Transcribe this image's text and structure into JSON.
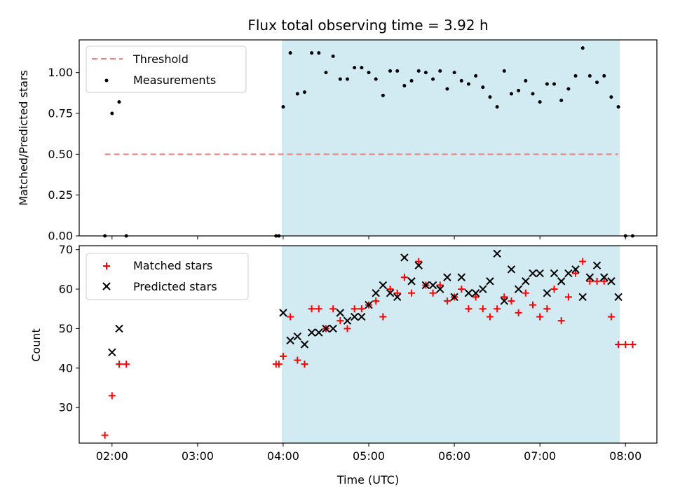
{
  "title": "Flux total observing time = 3.92 h",
  "colors": {
    "span": "#add8e6",
    "threshold": "#f08080",
    "measurement": "#000000",
    "matched": "#ff0000",
    "predicted": "#000000"
  },
  "chart_data": [
    {
      "type": "scatter",
      "ylabel": "Matched/Predicted stars",
      "ylim": [
        0,
        1.2
      ],
      "yticks": [
        "0.00",
        "0.25",
        "0.50",
        "0.75",
        "1.00"
      ],
      "ytick_values": [
        0,
        0.25,
        0.5,
        0.75,
        1.0
      ],
      "legend": {
        "placement": "top-left",
        "entries": [
          "Threshold",
          "Measurements"
        ]
      },
      "shaded_span": [
        "03:59",
        "07:56"
      ],
      "threshold": {
        "name": "Threshold",
        "y": 0.5,
        "x": [
          "01:55",
          "07:55"
        ]
      },
      "series": [
        {
          "name": "Measurements",
          "points": [
            [
              "01:55",
              0.0
            ],
            [
              "02:00",
              0.75
            ],
            [
              "02:05",
              0.82
            ],
            [
              "02:10",
              0.0
            ],
            [
              "03:55",
              0.0
            ],
            [
              "03:57",
              0.0
            ],
            [
              "04:00",
              0.79
            ],
            [
              "04:05",
              1.12
            ],
            [
              "04:10",
              0.87
            ],
            [
              "04:15",
              0.88
            ],
            [
              "04:20",
              1.12
            ],
            [
              "04:25",
              1.12
            ],
            [
              "04:30",
              1.0
            ],
            [
              "04:35",
              1.1
            ],
            [
              "04:40",
              0.96
            ],
            [
              "04:45",
              0.96
            ],
            [
              "04:50",
              1.03
            ],
            [
              "04:55",
              1.03
            ],
            [
              "05:00",
              1.0
            ],
            [
              "05:05",
              0.96
            ],
            [
              "05:10",
              0.86
            ],
            [
              "05:15",
              1.01
            ],
            [
              "05:20",
              1.01
            ],
            [
              "05:25",
              0.92
            ],
            [
              "05:30",
              0.95
            ],
            [
              "05:35",
              1.01
            ],
            [
              "05:40",
              1.0
            ],
            [
              "05:45",
              0.96
            ],
            [
              "05:50",
              1.01
            ],
            [
              "05:55",
              0.9
            ],
            [
              "06:00",
              1.0
            ],
            [
              "06:05",
              0.95
            ],
            [
              "06:10",
              0.93
            ],
            [
              "06:15",
              0.98
            ],
            [
              "06:20",
              0.91
            ],
            [
              "06:25",
              0.85
            ],
            [
              "06:30",
              0.79
            ],
            [
              "06:35",
              1.01
            ],
            [
              "06:40",
              0.87
            ],
            [
              "06:45",
              0.89
            ],
            [
              "06:50",
              0.95
            ],
            [
              "06:55",
              0.87
            ],
            [
              "07:00",
              0.82
            ],
            [
              "07:05",
              0.93
            ],
            [
              "07:10",
              0.93
            ],
            [
              "07:15",
              0.83
            ],
            [
              "07:20",
              0.9
            ],
            [
              "07:25",
              0.98
            ],
            [
              "07:30",
              1.15
            ],
            [
              "07:35",
              0.98
            ],
            [
              "07:40",
              0.94
            ],
            [
              "07:45",
              0.98
            ],
            [
              "07:50",
              0.85
            ],
            [
              "07:55",
              0.79
            ],
            [
              "08:00",
              0.0
            ],
            [
              "08:05",
              0.0
            ]
          ]
        }
      ]
    },
    {
      "type": "scatter",
      "xlabel": "Time (UTC)",
      "ylabel": "Count",
      "xlim": [
        "01:37",
        "08:22"
      ],
      "xticks": [
        "02:00",
        "03:00",
        "04:00",
        "05:00",
        "06:00",
        "07:00",
        "08:00"
      ],
      "ylim": [
        21,
        71
      ],
      "yticks": [
        "30",
        "40",
        "50",
        "60",
        "70"
      ],
      "ytick_values": [
        30,
        40,
        50,
        60,
        70
      ],
      "legend": {
        "placement": "top-left",
        "entries": [
          "Matched stars",
          "Predicted stars"
        ]
      },
      "shaded_span": [
        "03:59",
        "07:56"
      ],
      "series": [
        {
          "name": "Matched stars",
          "marker": "plus",
          "points": [
            [
              "01:55",
              23
            ],
            [
              "02:00",
              33
            ],
            [
              "02:05",
              41
            ],
            [
              "02:10",
              41
            ],
            [
              "03:55",
              41
            ],
            [
              "03:57",
              41
            ],
            [
              "04:00",
              43
            ],
            [
              "04:05",
              53
            ],
            [
              "04:10",
              42
            ],
            [
              "04:15",
              41
            ],
            [
              "04:20",
              55
            ],
            [
              "04:25",
              55
            ],
            [
              "04:30",
              50
            ],
            [
              "04:35",
              55
            ],
            [
              "04:40",
              52
            ],
            [
              "04:45",
              50
            ],
            [
              "04:50",
              55
            ],
            [
              "04:55",
              55
            ],
            [
              "05:00",
              56
            ],
            [
              "05:05",
              57
            ],
            [
              "05:10",
              53
            ],
            [
              "05:15",
              60
            ],
            [
              "05:20",
              59
            ],
            [
              "05:25",
              63
            ],
            [
              "05:30",
              59
            ],
            [
              "05:35",
              67
            ],
            [
              "05:40",
              61
            ],
            [
              "05:45",
              59
            ],
            [
              "05:50",
              61
            ],
            [
              "05:55",
              57
            ],
            [
              "06:00",
              58
            ],
            [
              "06:05",
              60
            ],
            [
              "06:10",
              55
            ],
            [
              "06:15",
              58
            ],
            [
              "06:20",
              55
            ],
            [
              "06:25",
              53
            ],
            [
              "06:30",
              55
            ],
            [
              "06:35",
              58
            ],
            [
              "06:40",
              57
            ],
            [
              "06:45",
              54
            ],
            [
              "06:50",
              59
            ],
            [
              "06:55",
              56
            ],
            [
              "07:00",
              53
            ],
            [
              "07:05",
              55
            ],
            [
              "07:10",
              60
            ],
            [
              "07:15",
              52
            ],
            [
              "07:20",
              58
            ],
            [
              "07:25",
              64
            ],
            [
              "07:30",
              67
            ],
            [
              "07:35",
              62
            ],
            [
              "07:40",
              62
            ],
            [
              "07:45",
              62
            ],
            [
              "07:50",
              53
            ],
            [
              "07:55",
              46
            ],
            [
              "08:00",
              46
            ],
            [
              "08:05",
              46
            ]
          ]
        },
        {
          "name": "Predicted stars",
          "marker": "cross",
          "points": [
            [
              "02:00",
              44
            ],
            [
              "02:05",
              50
            ],
            [
              "04:00",
              54
            ],
            [
              "04:05",
              47
            ],
            [
              "04:10",
              48
            ],
            [
              "04:15",
              46
            ],
            [
              "04:20",
              49
            ],
            [
              "04:25",
              49
            ],
            [
              "04:30",
              50
            ],
            [
              "04:35",
              50
            ],
            [
              "04:40",
              54
            ],
            [
              "04:45",
              52
            ],
            [
              "04:50",
              53
            ],
            [
              "04:55",
              53
            ],
            [
              "05:00",
              56
            ],
            [
              "05:05",
              59
            ],
            [
              "05:10",
              61
            ],
            [
              "05:15",
              59
            ],
            [
              "05:20",
              58
            ],
            [
              "05:25",
              68
            ],
            [
              "05:30",
              62
            ],
            [
              "05:35",
              66
            ],
            [
              "05:40",
              61
            ],
            [
              "05:45",
              61
            ],
            [
              "05:50",
              60
            ],
            [
              "05:55",
              63
            ],
            [
              "06:00",
              58
            ],
            [
              "06:05",
              63
            ],
            [
              "06:10",
              59
            ],
            [
              "06:15",
              59
            ],
            [
              "06:20",
              60
            ],
            [
              "06:25",
              62
            ],
            [
              "06:30",
              69
            ],
            [
              "06:35",
              57
            ],
            [
              "06:40",
              65
            ],
            [
              "06:45",
              60
            ],
            [
              "06:50",
              62
            ],
            [
              "06:55",
              64
            ],
            [
              "07:00",
              64
            ],
            [
              "07:05",
              59
            ],
            [
              "07:10",
              64
            ],
            [
              "07:15",
              62
            ],
            [
              "07:20",
              64
            ],
            [
              "07:25",
              65
            ],
            [
              "07:30",
              58
            ],
            [
              "07:35",
              63
            ],
            [
              "07:40",
              66
            ],
            [
              "07:45",
              63
            ],
            [
              "07:50",
              62
            ],
            [
              "07:55",
              58
            ]
          ]
        }
      ]
    }
  ]
}
